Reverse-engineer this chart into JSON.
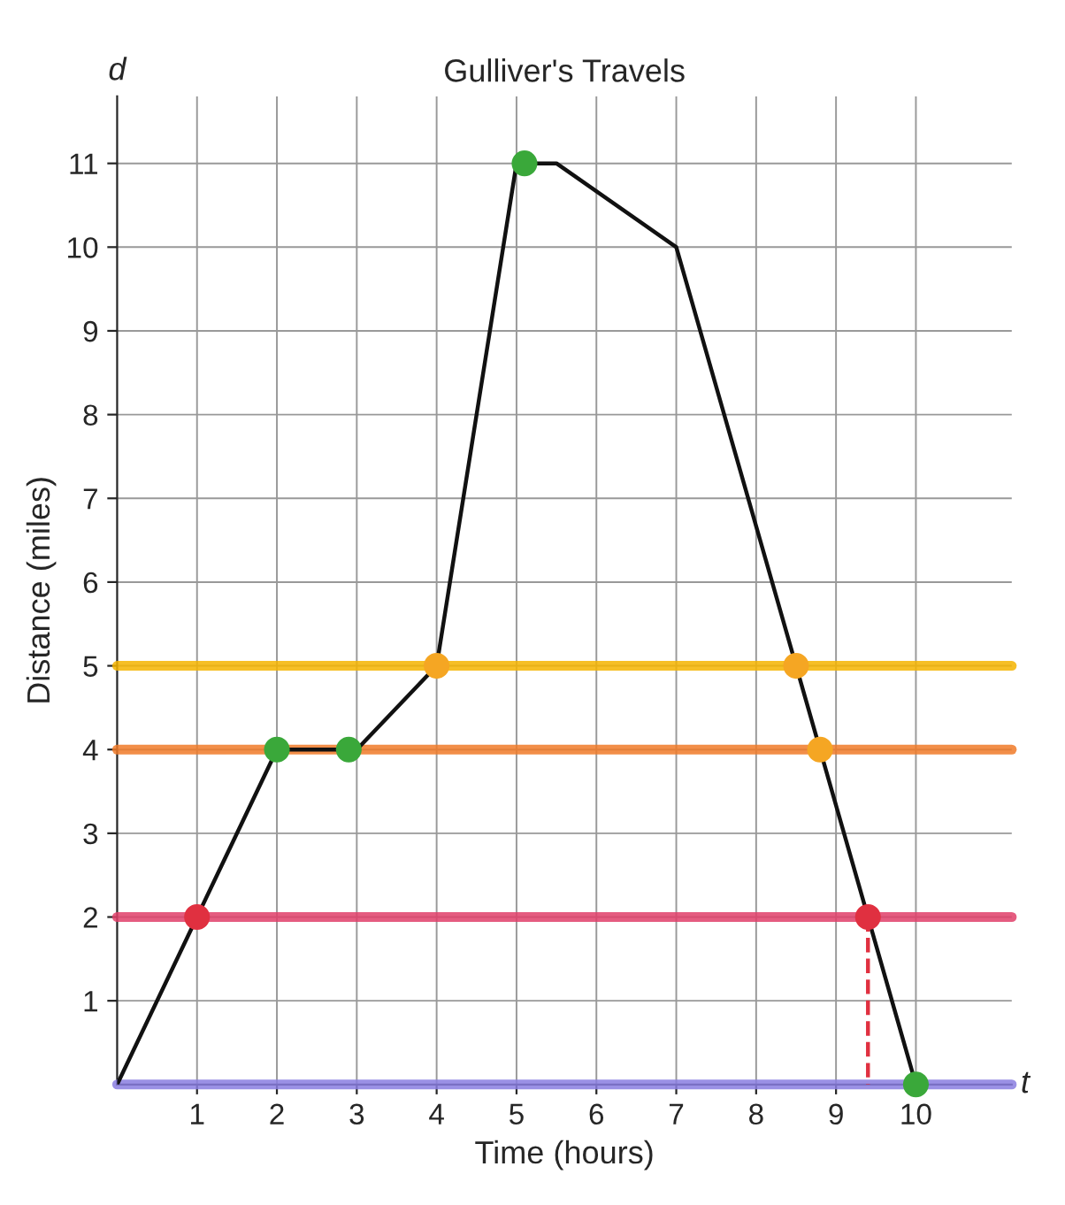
{
  "chart_data": {
    "type": "line",
    "title": "Gulliver's Travels",
    "xlabel": "Time (hours)",
    "ylabel": "Distance (miles)",
    "annotations": [
      "d",
      "t"
    ],
    "series": [
      {
        "color": "#111111",
        "x": [
          0,
          1,
          2,
          3,
          4,
          5,
          5.5,
          7,
          10
        ],
        "values": [
          0,
          2,
          4,
          4,
          5,
          11,
          11,
          10,
          0
        ],
        "marker": "none",
        "line_style": "solid"
      },
      {
        "type": "scatter",
        "color": "#3aa83a",
        "x": [
          2,
          2.9,
          5.1,
          10
        ],
        "values": [
          4,
          4,
          11,
          0
        ],
        "marker": "circle"
      },
      {
        "type": "scatter",
        "color": "#e03040",
        "x": [
          1,
          9.4
        ],
        "values": [
          2,
          2
        ],
        "marker": "circle"
      },
      {
        "type": "scatter",
        "color": "#f5a623",
        "x": [
          4,
          8.5,
          8.8
        ],
        "values": [
          5,
          5,
          4
        ],
        "marker": "circle"
      },
      {
        "color": "#e03040",
        "x": [
          9.4,
          9.4
        ],
        "values": [
          2,
          0
        ],
        "marker": "none",
        "line_style": "dashed"
      }
    ],
    "ref_lines": [
      {
        "axis": "y",
        "value": 5,
        "color": "#f5b400"
      },
      {
        "axis": "y",
        "value": 4,
        "color": "#f07a28"
      },
      {
        "axis": "y",
        "value": 2,
        "color": "#e0406a"
      },
      {
        "axis": "y",
        "value": 0,
        "color": "#8a7ee0"
      }
    ],
    "xlim": [
      0,
      11.2
    ],
    "ylim": [
      0,
      11.8
    ],
    "xticks": [
      1,
      2,
      3,
      4,
      5,
      6,
      7,
      8,
      9,
      10
    ],
    "yticks": [
      1,
      2,
      3,
      4,
      5,
      6,
      7,
      8,
      9,
      10,
      11
    ],
    "grid": true,
    "legend": false
  }
}
